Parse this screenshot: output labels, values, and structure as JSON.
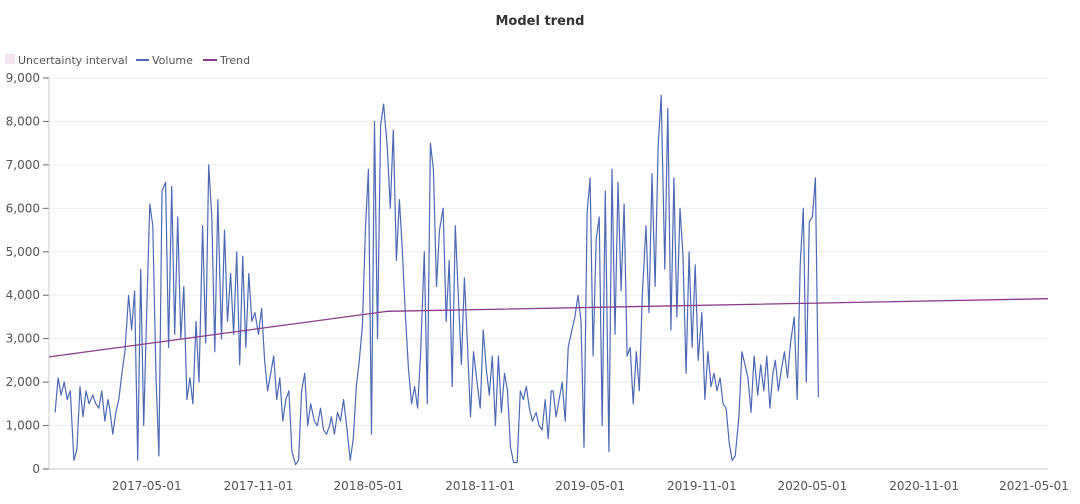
{
  "chart_data": {
    "type": "line",
    "title": "Model trend",
    "xlabel": "",
    "ylabel": "",
    "xlim": [
      "2016-11-21",
      "2021-05-24"
    ],
    "ylim": [
      0,
      9000
    ],
    "grid": "horizontal",
    "legend": {
      "placement": "top-left",
      "entries": [
        {
          "name": "Uncertainty interval",
          "color": "#f3e4ef",
          "kind": "band"
        },
        {
          "name": "Volume",
          "color": "#4d69b5",
          "kind": "line"
        },
        {
          "name": "Trend",
          "color": "#8b3a8b",
          "kind": "line"
        }
      ]
    },
    "y_ticks": [
      {
        "value": 0,
        "label": "0"
      },
      {
        "value": 1000,
        "label": "1,000"
      },
      {
        "value": 2000,
        "label": "2,000"
      },
      {
        "value": 3000,
        "label": "3,000"
      },
      {
        "value": 4000,
        "label": "4,000"
      },
      {
        "value": 5000,
        "label": "5,000"
      },
      {
        "value": 6000,
        "label": "6,000"
      },
      {
        "value": 7000,
        "label": "7,000"
      },
      {
        "value": 8000,
        "label": "8,000"
      },
      {
        "value": 9000,
        "label": "9,000"
      }
    ],
    "x_ticks": [
      "2017-05-01",
      "2017-11-01",
      "2018-05-01",
      "2018-11-01",
      "2019-05-01",
      "2019-11-01",
      "2020-05-01",
      "2020-11-01",
      "2021-05-01"
    ],
    "series": [
      {
        "name": "Volume",
        "monthly_values": [
          {
            "month": "2016-12",
            "values": [
              1300,
              2100,
              1700,
              2000,
              1600,
              1800
            ]
          },
          {
            "month": "2017-01",
            "values": [
              200,
              450,
              1900,
              1200,
              1800,
              1500
            ]
          },
          {
            "month": "2017-02",
            "values": [
              1700,
              1500,
              1400,
              1800,
              1100,
              1600
            ]
          },
          {
            "month": "2017-03",
            "values": [
              1400,
              800,
              1300,
              1600,
              2200,
              2700
            ]
          },
          {
            "month": "2017-04",
            "values": [
              4000,
              3200,
              4100,
              200,
              4600,
              1000
            ]
          },
          {
            "month": "2017-05",
            "values": [
              3700,
              6100,
              5600,
              2200,
              300,
              6400
            ]
          },
          {
            "month": "2017-06",
            "values": [
              6600,
              2800,
              6500,
              3100,
              5800,
              3000
            ]
          },
          {
            "month": "2017-07",
            "values": [
              4200,
              1600,
              2100,
              1500,
              3400,
              2000
            ]
          },
          {
            "month": "2017-08",
            "values": [
              5600,
              2900,
              7000,
              5800,
              2700,
              6200
            ]
          },
          {
            "month": "2017-09",
            "values": [
              3000,
              5500,
              3400,
              4500,
              3100,
              5000
            ]
          },
          {
            "month": "2017-10",
            "values": [
              2400,
              4900,
              2800,
              4500,
              3400,
              3600
            ]
          },
          {
            "month": "2017-11",
            "values": [
              3100,
              3700,
              2500,
              1800,
              2200,
              2600
            ]
          },
          {
            "month": "2017-12",
            "values": [
              1600,
              2100,
              1100,
              1600,
              1800,
              400
            ]
          },
          {
            "month": "2018-01",
            "values": [
              100,
              200,
              1800,
              2200,
              1000,
              1500
            ]
          },
          {
            "month": "2018-02",
            "values": [
              1100,
              1000,
              1400,
              900,
              800,
              1000
            ]
          },
          {
            "month": "2018-03",
            "values": [
              1200,
              800,
              1300,
              1100,
              1600,
              1000
            ]
          },
          {
            "month": "2018-04",
            "values": [
              200,
              700,
              1900,
              2500,
              3300,
              5500
            ]
          },
          {
            "month": "2018-05",
            "values": [
              6900,
              800,
              8000,
              3000,
              7900,
              8400
            ]
          },
          {
            "month": "2018-06",
            "values": [
              7400,
              6000,
              7800,
              4800,
              6200,
              5000
            ]
          },
          {
            "month": "2018-07",
            "values": [
              3500,
              2300,
              1500,
              1900,
              1400,
              2700
            ]
          },
          {
            "month": "2018-08",
            "values": [
              5000,
              1500,
              7500,
              6900,
              4200,
              5500
            ]
          },
          {
            "month": "2018-09",
            "values": [
              6000,
              3400,
              4800,
              1900,
              5600,
              4000
            ]
          },
          {
            "month": "2018-10",
            "values": [
              2400,
              4400,
              2900,
              1200,
              2700,
              2100
            ]
          },
          {
            "month": "2018-11",
            "values": [
              1400,
              3200,
              2300,
              1700,
              2600,
              1000
            ]
          },
          {
            "month": "2018-12",
            "values": [
              2600,
              1300,
              2200,
              1800,
              500,
              150
            ]
          },
          {
            "month": "2019-01",
            "values": [
              150,
              1800,
              1600,
              1900,
              1400,
              1100
            ]
          },
          {
            "month": "2019-02",
            "values": [
              1300,
              1000,
              900,
              1600,
              700,
              1800
            ]
          },
          {
            "month": "2019-03",
            "values": [
              1800,
              1200,
              1600,
              2000,
              1100,
              2800
            ]
          },
          {
            "month": "2019-04",
            "values": [
              3200,
              3500,
              4000,
              3400,
              500,
              5900
            ]
          },
          {
            "month": "2019-05",
            "values": [
              6700,
              2600,
              5300,
              5800,
              1000,
              6400
            ]
          },
          {
            "month": "2019-06",
            "values": [
              400,
              6900,
              3100,
              6600,
              4100,
              6100
            ]
          },
          {
            "month": "2019-07",
            "values": [
              2600,
              2800,
              1500,
              2700,
              1800,
              4000
            ]
          },
          {
            "month": "2019-08",
            "values": [
              5600,
              3600,
              6800,
              4200,
              7400,
              8600
            ]
          },
          {
            "month": "2019-09",
            "values": [
              4600,
              8300,
              3200,
              6700,
              3500,
              6000
            ]
          },
          {
            "month": "2019-10",
            "values": [
              4900,
              2200,
              5000,
              2800,
              4700,
              2500
            ]
          },
          {
            "month": "2019-11",
            "values": [
              3600,
              1600,
              2700,
              1900,
              2200,
              1800
            ]
          },
          {
            "month": "2019-12",
            "values": [
              2100,
              1500,
              1400,
              600,
              200,
              300
            ]
          },
          {
            "month": "2020-01",
            "values": [
              1200,
              2700,
              2400,
              2100,
              1300,
              2600
            ]
          },
          {
            "month": "2020-02",
            "values": [
              1700,
              2400,
              1800,
              2600,
              1400,
              2200
            ]
          },
          {
            "month": "2020-03",
            "values": [
              2500,
              1800,
              2300,
              2700,
              2100,
              2900
            ]
          },
          {
            "month": "2020-04",
            "values": [
              3500,
              1600,
              4700,
              6000,
              2000,
              5700
            ]
          },
          {
            "month": "2020-05",
            "values": [
              5800,
              6700,
              1650
            ]
          }
        ]
      },
      {
        "name": "Trend",
        "points": [
          {
            "x": "2016-11-21",
            "y": 2580
          },
          {
            "x": "2018-06-01",
            "y": 3630
          },
          {
            "x": "2021-05-24",
            "y": 3920
          }
        ]
      }
    ]
  }
}
